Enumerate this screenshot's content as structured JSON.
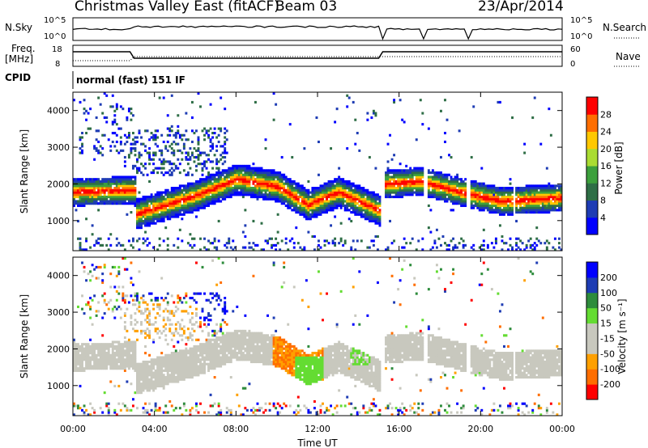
{
  "header": {
    "title": "Christmas Valley East (fitACF)",
    "beam": "Beam 03",
    "date": "23/Apr/2014"
  },
  "panels": {
    "nsky_label": "N.Sky",
    "nsearch_label": "N.Search",
    "nsky_ticks": [
      "10^5",
      "10^0"
    ],
    "nsearch_ticks": [
      "10^5",
      "10^0"
    ],
    "freq_label": "Freq.",
    "freq_unit": "[MHz]",
    "freq_ticks": [
      "18",
      "8"
    ],
    "nave_ticks": [
      "60",
      "0"
    ],
    "nave_label": "Nave",
    "cpid_label": "CPID",
    "cpid_value": "normal (fast) 151 IF"
  },
  "chart_data": [
    {
      "type": "heatmap",
      "name": "power",
      "ylabel": "Slant Range [km]",
      "yticks": [
        "4000",
        "3000",
        "2000",
        "1000"
      ],
      "xlabel": "Time UT",
      "xticks": [
        "00:00",
        "04:00",
        "08:00",
        "12:00",
        "16:00",
        "20:00",
        "00:00"
      ],
      "colorbar_label": "Power [dB]",
      "colorbar_ticks": [
        "28",
        "24",
        "20",
        "16",
        "12",
        "8",
        "4"
      ],
      "colorbar_colors": [
        "#0000ff",
        "#1e3cb4",
        "#2e6e46",
        "#3ca03c",
        "#aadc32",
        "#ffc800",
        "#ff6e00",
        "#ff0000"
      ],
      "ylim": [
        180,
        4500
      ],
      "xlim_hours": [
        0,
        24
      ],
      "echo_band": [
        {
          "t": 0,
          "r": 1750
        },
        {
          "t": 3,
          "r": 1800
        },
        {
          "t": 3.1,
          "r": 1150
        },
        {
          "t": 6,
          "r": 1650
        },
        {
          "t": 8,
          "r": 2100
        },
        {
          "t": 10,
          "r": 1900
        },
        {
          "t": 11.5,
          "r": 1400
        },
        {
          "t": 13,
          "r": 1750
        },
        {
          "t": 15,
          "r": 1250
        },
        {
          "t": 15.2,
          "r": 1950
        },
        {
          "t": 17,
          "r": 2050
        },
        {
          "t": 19,
          "r": 1750
        },
        {
          "t": 21,
          "r": 1500
        },
        {
          "t": 24,
          "r": 1600
        }
      ]
    },
    {
      "type": "heatmap",
      "name": "velocity",
      "ylabel": "Slant Range [km]",
      "yticks": [
        "4000",
        "3000",
        "2000",
        "1000"
      ],
      "xlabel": "Time UT",
      "xticks": [
        "00:00",
        "04:00",
        "08:00",
        "12:00",
        "16:00",
        "20:00",
        "00:00"
      ],
      "colorbar_label": "Velocity [m s⁻¹]",
      "colorbar_ticks": [
        "200",
        "100",
        "50",
        "15",
        "-15",
        "-50",
        "-100",
        "-200"
      ],
      "colorbar_colors": [
        "#ff0000",
        "#ff6e00",
        "#ffa000",
        "#c8c8be",
        "#c8c8be",
        "#64dc32",
        "#2e8c3c",
        "#1e3cb4",
        "#0000ff"
      ],
      "ylim": [
        180,
        4500
      ],
      "xlim_hours": [
        0,
        24
      ]
    }
  ],
  "x_axis": {
    "label": "Time UT",
    "ticks": [
      "00:00",
      "04:00",
      "08:00",
      "12:00",
      "16:00",
      "20:00",
      "00:00"
    ]
  }
}
